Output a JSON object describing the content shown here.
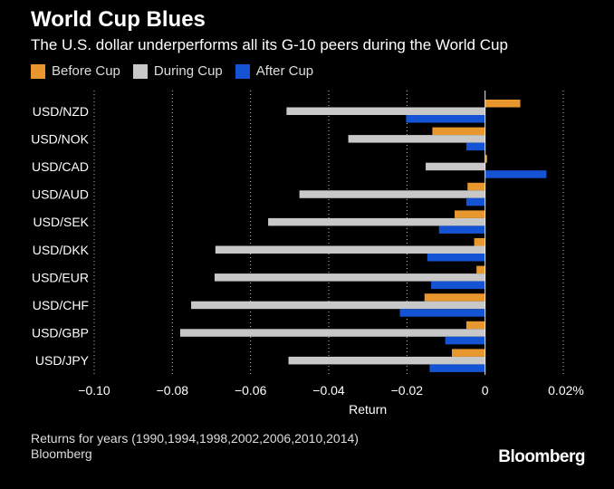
{
  "header": {
    "title": "World Cup Blues",
    "subtitle": "The U.S. dollar underperforms all its G-10 peers during the World Cup"
  },
  "footer": {
    "note": "Returns for years (1990,1994,1998,2002,2006,2010,2014)",
    "source": "Bloomberg",
    "logo": "Bloomberg"
  },
  "colors": {
    "before": "#E8962E",
    "during": "#C8C8C8",
    "after": "#1454D4"
  },
  "chart_data": {
    "type": "bar",
    "orientation": "horizontal",
    "title": "World Cup Blues",
    "xlabel": "Return",
    "ylabel": "",
    "xlim": [
      -0.1,
      0.02
    ],
    "grid": true,
    "legend_position": "top-left",
    "categories": [
      "USD/NZD",
      "USD/NOK",
      "USD/CAD",
      "USD/AUD",
      "USD/SEK",
      "USD/DKK",
      "USD/EUR",
      "USD/CHF",
      "USD/GBP",
      "USD/JPY"
    ],
    "x_ticks": [
      -0.1,
      -0.08,
      -0.06,
      -0.04,
      -0.02,
      0,
      0.02
    ],
    "x_tick_labels": [
      "−0.10",
      "−0.08",
      "−0.06",
      "−0.04",
      "−0.02",
      "0",
      "0.02%"
    ],
    "series": [
      {
        "name": "Before Cup",
        "color_key": "before",
        "values": [
          0.009,
          -0.0135,
          0.0005,
          -0.0045,
          -0.0078,
          -0.0028,
          -0.0022,
          -0.0155,
          -0.0048,
          -0.0085
        ]
      },
      {
        "name": "During Cup",
        "color_key": "during",
        "values": [
          -0.0508,
          -0.035,
          -0.0152,
          -0.0475,
          -0.0555,
          -0.069,
          -0.0692,
          -0.0752,
          -0.078,
          -0.0503
        ]
      },
      {
        "name": "After Cup",
        "color_key": "after",
        "values": [
          -0.0202,
          -0.0048,
          0.0157,
          -0.0048,
          -0.0118,
          -0.0148,
          -0.0138,
          -0.0218,
          -0.0102,
          -0.0142
        ]
      }
    ]
  }
}
